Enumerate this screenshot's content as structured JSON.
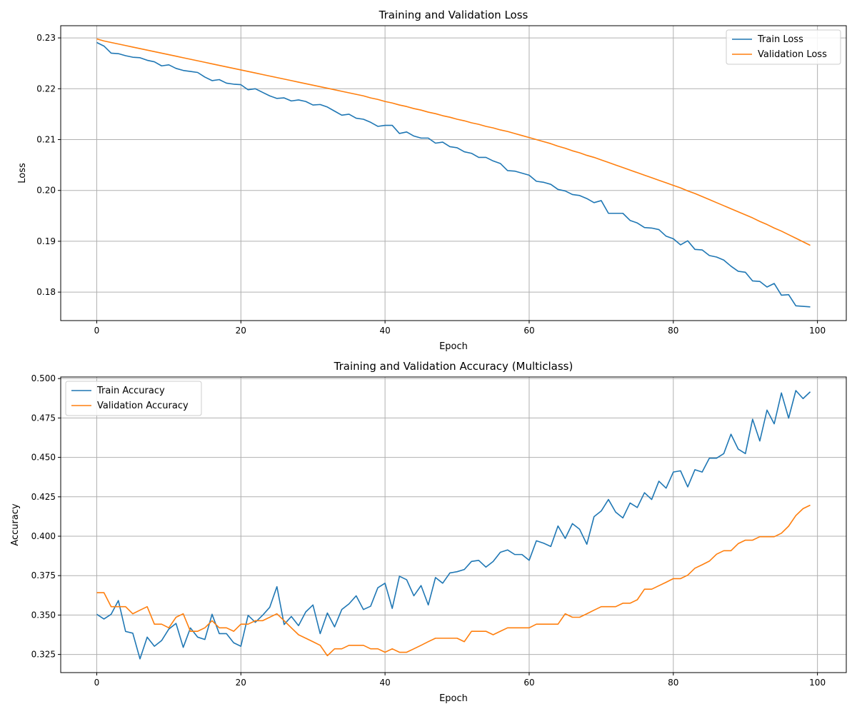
{
  "chart_data": [
    {
      "type": "line",
      "title": "Training and Validation Loss",
      "xlabel": "Epoch",
      "ylabel": "Loss",
      "xlim": [
        -5,
        104
      ],
      "ylim": [
        0.1744,
        0.2324
      ],
      "xticks": [
        0,
        20,
        40,
        60,
        80,
        100
      ],
      "yticks": [
        0.18,
        0.19,
        0.2,
        0.21,
        0.22,
        0.23
      ],
      "ytick_labels": [
        "0.18",
        "0.19",
        "0.20",
        "0.21",
        "0.22",
        "0.23"
      ],
      "grid": true,
      "legend_position": "top-right",
      "x": [
        0,
        1,
        2,
        3,
        4,
        5,
        6,
        7,
        8,
        9,
        10,
        11,
        12,
        13,
        14,
        15,
        16,
        17,
        18,
        19,
        20,
        21,
        22,
        23,
        24,
        25,
        26,
        27,
        28,
        29,
        30,
        31,
        32,
        33,
        34,
        35,
        36,
        37,
        38,
        39,
        40,
        41,
        42,
        43,
        44,
        45,
        46,
        47,
        48,
        49,
        50,
        51,
        52,
        53,
        54,
        55,
        56,
        57,
        58,
        59,
        60,
        61,
        62,
        63,
        64,
        65,
        66,
        67,
        68,
        69,
        70,
        71,
        72,
        73,
        74,
        75,
        76,
        77,
        78,
        79,
        80,
        81,
        82,
        83,
        84,
        85,
        86,
        87,
        88,
        89,
        90,
        91,
        92,
        93,
        94,
        95,
        96,
        97,
        98,
        99
      ],
      "series": [
        {
          "name": "Train Loss",
          "color": "#1f77b4",
          "values": [
            0.2291,
            0.2284,
            0.227,
            0.2269,
            0.2265,
            0.2262,
            0.2261,
            0.2256,
            0.2253,
            0.2245,
            0.2247,
            0.224,
            0.2236,
            0.2234,
            0.2232,
            0.2223,
            0.2216,
            0.2218,
            0.2211,
            0.2209,
            0.2208,
            0.2198,
            0.22,
            0.2193,
            0.2186,
            0.2181,
            0.2182,
            0.2176,
            0.2178,
            0.2175,
            0.2168,
            0.2169,
            0.2164,
            0.2156,
            0.2148,
            0.215,
            0.2142,
            0.214,
            0.2134,
            0.2126,
            0.2128,
            0.2128,
            0.2112,
            0.2115,
            0.2107,
            0.2103,
            0.2103,
            0.2093,
            0.2095,
            0.2086,
            0.2084,
            0.2076,
            0.2073,
            0.2065,
            0.2065,
            0.2058,
            0.2053,
            0.2039,
            0.2038,
            0.2034,
            0.203,
            0.2018,
            0.2016,
            0.2012,
            0.2002,
            0.1999,
            0.1992,
            0.199,
            0.1984,
            0.1976,
            0.198,
            0.1955,
            0.1955,
            0.1955,
            0.1941,
            0.1936,
            0.1927,
            0.1926,
            0.1923,
            0.191,
            0.1905,
            0.1893,
            0.1901,
            0.1884,
            0.1883,
            0.1872,
            0.1869,
            0.1863,
            0.1851,
            0.1841,
            0.1839,
            0.1822,
            0.1821,
            0.181,
            0.1817,
            0.1794,
            0.1795,
            0.1773,
            0.1772,
            0.1771
          ]
        },
        {
          "name": "Validation Loss",
          "color": "#ff7f0e",
          "values": [
            0.2298,
            0.2294,
            0.2291,
            0.2288,
            0.2285,
            0.2282,
            0.2279,
            0.2276,
            0.2273,
            0.227,
            0.2267,
            0.2264,
            0.2261,
            0.2258,
            0.2255,
            0.2252,
            0.2249,
            0.2246,
            0.2243,
            0.224,
            0.2237,
            0.2234,
            0.2231,
            0.2228,
            0.2225,
            0.2222,
            0.2219,
            0.2216,
            0.2213,
            0.221,
            0.2207,
            0.2204,
            0.2201,
            0.2198,
            0.2195,
            0.2192,
            0.2189,
            0.2186,
            0.2182,
            0.2179,
            0.2175,
            0.2172,
            0.2168,
            0.2165,
            0.2161,
            0.2158,
            0.2154,
            0.2151,
            0.2147,
            0.2144,
            0.214,
            0.2137,
            0.2133,
            0.213,
            0.2126,
            0.2123,
            0.2119,
            0.2116,
            0.2112,
            0.2108,
            0.2104,
            0.21,
            0.2096,
            0.2092,
            0.2087,
            0.2083,
            0.2078,
            0.2074,
            0.2069,
            0.2065,
            0.206,
            0.2055,
            0.205,
            0.2045,
            0.204,
            0.2035,
            0.203,
            0.2025,
            0.202,
            0.2015,
            0.201,
            0.2005,
            0.1999,
            0.1994,
            0.1988,
            0.1982,
            0.1976,
            0.197,
            0.1964,
            0.1958,
            0.1952,
            0.1946,
            0.1939,
            0.1933,
            0.1926,
            0.192,
            0.1913,
            0.1906,
            0.1899,
            0.1892
          ]
        }
      ]
    },
    {
      "type": "line",
      "title": "Training and Validation Accuracy (Multiclass)",
      "xlabel": "Epoch",
      "ylabel": "Accuracy",
      "xlim": [
        -5,
        104
      ],
      "ylim": [
        0.3135,
        0.501
      ],
      "xticks": [
        0,
        20,
        40,
        60,
        80,
        100
      ],
      "yticks": [
        0.325,
        0.35,
        0.375,
        0.4,
        0.425,
        0.45,
        0.475,
        0.5
      ],
      "ytick_labels": [
        "0.325",
        "0.350",
        "0.375",
        "0.400",
        "0.425",
        "0.450",
        "0.475",
        "0.500"
      ],
      "grid": true,
      "legend_position": "top-left",
      "x": [
        0,
        1,
        2,
        3,
        4,
        5,
        6,
        7,
        8,
        9,
        10,
        11,
        12,
        13,
        14,
        15,
        16,
        17,
        18,
        19,
        20,
        21,
        22,
        23,
        24,
        25,
        26,
        27,
        28,
        29,
        30,
        31,
        32,
        33,
        34,
        35,
        36,
        37,
        38,
        39,
        40,
        41,
        42,
        43,
        44,
        45,
        46,
        47,
        48,
        49,
        50,
        51,
        52,
        53,
        54,
        55,
        56,
        57,
        58,
        59,
        60,
        61,
        62,
        63,
        64,
        65,
        66,
        67,
        68,
        69,
        70,
        71,
        72,
        73,
        74,
        75,
        76,
        77,
        78,
        79,
        80,
        81,
        82,
        83,
        84,
        85,
        86,
        87,
        88,
        89,
        90,
        91,
        92,
        93,
        94,
        95,
        96,
        97,
        98,
        99
      ],
      "series": [
        {
          "name": "Train Accuracy",
          "color": "#1f77b4",
          "values": [
            0.3505,
            0.3475,
            0.3505,
            0.3592,
            0.3396,
            0.3385,
            0.3222,
            0.336,
            0.3302,
            0.3338,
            0.3411,
            0.3447,
            0.3295,
            0.3418,
            0.336,
            0.3345,
            0.3505,
            0.3382,
            0.3382,
            0.3324,
            0.3302,
            0.3498,
            0.3454,
            0.3498,
            0.3549,
            0.368,
            0.344,
            0.3491,
            0.3433,
            0.352,
            0.3564,
            0.3382,
            0.3513,
            0.3425,
            0.3535,
            0.3571,
            0.3622,
            0.3535,
            0.3556,
            0.3673,
            0.3702,
            0.3542,
            0.3746,
            0.3724,
            0.3622,
            0.3687,
            0.3564,
            0.3738,
            0.3702,
            0.3767,
            0.3775,
            0.3789,
            0.384,
            0.3847,
            0.3804,
            0.384,
            0.3898,
            0.3913,
            0.3884,
            0.3884,
            0.3847,
            0.3971,
            0.3956,
            0.3935,
            0.4065,
            0.3986,
            0.408,
            0.4044,
            0.3949,
            0.4124,
            0.416,
            0.4233,
            0.4153,
            0.4116,
            0.4211,
            0.4182,
            0.4276,
            0.4233,
            0.4349,
            0.4305,
            0.4407,
            0.4415,
            0.4313,
            0.4422,
            0.4407,
            0.4495,
            0.4495,
            0.4524,
            0.4647,
            0.4553,
            0.4524,
            0.4742,
            0.4604,
            0.48,
            0.4713,
            0.4909,
            0.4749,
            0.4924,
            0.4873,
            0.4916
          ]
        },
        {
          "name": "Validation Accuracy",
          "color": "#ff7f0e",
          "values": [
            0.3642,
            0.3642,
            0.3553,
            0.3553,
            0.3553,
            0.3508,
            0.3531,
            0.3553,
            0.3442,
            0.3442,
            0.3419,
            0.3486,
            0.3508,
            0.3397,
            0.3397,
            0.3419,
            0.3464,
            0.3419,
            0.3419,
            0.3397,
            0.3442,
            0.3442,
            0.3464,
            0.3464,
            0.3486,
            0.3508,
            0.3464,
            0.3419,
            0.3375,
            0.3353,
            0.3331,
            0.3308,
            0.3242,
            0.3286,
            0.3286,
            0.3308,
            0.3308,
            0.3308,
            0.3286,
            0.3286,
            0.3264,
            0.3286,
            0.3264,
            0.3264,
            0.3286,
            0.3308,
            0.3331,
            0.3353,
            0.3353,
            0.3353,
            0.3353,
            0.3331,
            0.3397,
            0.3397,
            0.3397,
            0.3375,
            0.3397,
            0.3419,
            0.3419,
            0.3419,
            0.3419,
            0.3442,
            0.3442,
            0.3442,
            0.3442,
            0.3508,
            0.3486,
            0.3486,
            0.3508,
            0.3531,
            0.3553,
            0.3553,
            0.3553,
            0.3575,
            0.3575,
            0.3597,
            0.3664,
            0.3664,
            0.3686,
            0.3708,
            0.3731,
            0.3731,
            0.3753,
            0.3797,
            0.3819,
            0.3842,
            0.3886,
            0.3908,
            0.3908,
            0.3953,
            0.3975,
            0.3975,
            0.3997,
            0.3997,
            0.3997,
            0.4019,
            0.4064,
            0.4131,
            0.4175,
            0.4197
          ]
        }
      ]
    }
  ]
}
